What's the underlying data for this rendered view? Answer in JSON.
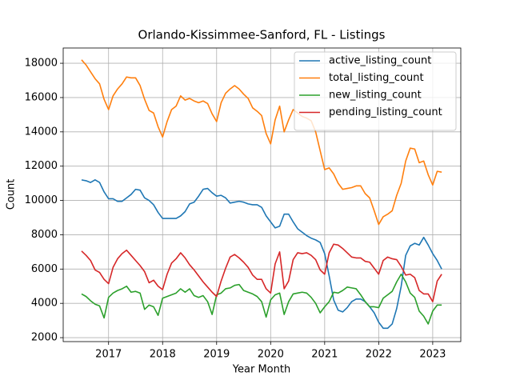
{
  "chart_data": {
    "type": "line",
    "title": "Orlando-Kissimmee-Sanford, FL - Listings",
    "x_label": "Year Month",
    "y_label": "Count",
    "x": [
      "2016-07",
      "2016-08",
      "2016-09",
      "2016-10",
      "2016-11",
      "2016-12",
      "2017-01",
      "2017-02",
      "2017-03",
      "2017-04",
      "2017-05",
      "2017-06",
      "2017-07",
      "2017-08",
      "2017-09",
      "2017-10",
      "2017-11",
      "2017-12",
      "2018-01",
      "2018-02",
      "2018-03",
      "2018-04",
      "2018-05",
      "2018-06",
      "2018-07",
      "2018-08",
      "2018-09",
      "2018-10",
      "2018-11",
      "2018-12",
      "2019-01",
      "2019-02",
      "2019-03",
      "2019-04",
      "2019-05",
      "2019-06",
      "2019-07",
      "2019-08",
      "2019-09",
      "2019-10",
      "2019-11",
      "2019-12",
      "2020-01",
      "2020-02",
      "2020-03",
      "2020-04",
      "2020-05",
      "2020-06",
      "2020-07",
      "2020-08",
      "2020-09",
      "2020-10",
      "2020-11",
      "2020-12",
      "2021-01",
      "2021-02",
      "2021-03",
      "2021-04",
      "2021-05",
      "2021-06",
      "2021-07",
      "2021-08",
      "2021-09",
      "2021-10",
      "2021-11",
      "2021-12",
      "2022-01",
      "2022-02",
      "2022-03",
      "2022-04",
      "2022-05",
      "2022-06",
      "2022-07",
      "2022-08",
      "2022-09",
      "2022-10",
      "2022-11",
      "2022-12",
      "2023-01",
      "2023-02",
      "2023-03"
    ],
    "series": [
      {
        "name": "active_listing_count",
        "color": "#1f77b4",
        "values": [
          11200,
          11150,
          11050,
          11200,
          11050,
          10500,
          10100,
          10100,
          9950,
          9950,
          10150,
          10350,
          10650,
          10600,
          10150,
          10000,
          9750,
          9300,
          8950,
          8950,
          8950,
          8950,
          9100,
          9350,
          9800,
          9900,
          10250,
          10650,
          10700,
          10450,
          10250,
          10300,
          10150,
          9850,
          9900,
          9950,
          9900,
          9800,
          9750,
          9750,
          9600,
          9100,
          8750,
          8400,
          8500,
          9200,
          9200,
          8750,
          8350,
          8150,
          7950,
          7800,
          7700,
          7550,
          6900,
          5600,
          4200,
          3600,
          3500,
          3750,
          4100,
          4250,
          4250,
          4100,
          3800,
          3450,
          2900,
          2550,
          2550,
          2800,
          3700,
          5000,
          6800,
          7350,
          7500,
          7400,
          7850,
          7400,
          6900,
          6500,
          6000
        ]
      },
      {
        "name": "total_listing_count",
        "color": "#ff7f0e",
        "values": [
          18200,
          17900,
          17500,
          17100,
          16800,
          15900,
          15300,
          16100,
          16500,
          16800,
          17200,
          17150,
          17150,
          16700,
          15900,
          15250,
          15100,
          14300,
          13700,
          14600,
          15300,
          15500,
          16100,
          15850,
          15950,
          15800,
          15700,
          15800,
          15650,
          15050,
          14600,
          15700,
          16250,
          16500,
          16700,
          16500,
          16200,
          15950,
          15400,
          15200,
          14950,
          13900,
          13300,
          14700,
          15500,
          14000,
          14700,
          15300,
          15100,
          14900,
          14800,
          14650,
          14000,
          12900,
          11800,
          11900,
          11550,
          11000,
          10650,
          10700,
          10750,
          10850,
          10850,
          10400,
          10150,
          9400,
          8600,
          9050,
          9200,
          9400,
          10300,
          11000,
          12300,
          13050,
          13000,
          12200,
          12300,
          11500,
          10900,
          11700,
          11650
        ]
      },
      {
        "name": "new_listing_count",
        "color": "#2ca02c",
        "values": [
          4550,
          4400,
          4150,
          3950,
          3850,
          3150,
          4350,
          4600,
          4750,
          4850,
          5000,
          4650,
          4700,
          4600,
          3650,
          3900,
          3800,
          3300,
          4300,
          4400,
          4500,
          4600,
          4850,
          4650,
          4850,
          4450,
          4350,
          4450,
          4100,
          3350,
          4500,
          4600,
          4850,
          4900,
          5050,
          5100,
          4750,
          4650,
          4550,
          4400,
          4100,
          3200,
          4200,
          4500,
          4600,
          3350,
          4100,
          4550,
          4600,
          4650,
          4600,
          4350,
          4000,
          3450,
          3800,
          4100,
          4650,
          4600,
          4750,
          4950,
          4900,
          4850,
          4500,
          4100,
          3800,
          3800,
          3750,
          4300,
          4500,
          4700,
          5250,
          5700,
          5250,
          4600,
          4350,
          3550,
          3250,
          2800,
          3550,
          3900,
          3900
        ]
      },
      {
        "name": "pending_listing_count",
        "color": "#d62728",
        "values": [
          7050,
          6800,
          6500,
          5950,
          5800,
          5400,
          5150,
          6100,
          6600,
          6900,
          7100,
          6800,
          6500,
          6200,
          5850,
          5200,
          5350,
          5000,
          4800,
          5700,
          6350,
          6600,
          6950,
          6650,
          6250,
          5950,
          5600,
          5250,
          4950,
          4650,
          4400,
          5300,
          6050,
          6700,
          6850,
          6650,
          6400,
          6100,
          5650,
          5400,
          5400,
          4850,
          4600,
          6300,
          7000,
          4850,
          5300,
          6550,
          6950,
          6900,
          6950,
          6800,
          6550,
          5950,
          5700,
          6950,
          7450,
          7400,
          7200,
          6950,
          6700,
          6650,
          6650,
          6450,
          6400,
          6050,
          5700,
          6500,
          6700,
          6600,
          6550,
          6150,
          5650,
          5700,
          5500,
          4750,
          4550,
          4550,
          4100,
          5300,
          5700
        ]
      }
    ],
    "xlim": [
      2016.16,
      2023.52
    ],
    "xticks": [
      2017,
      2018,
      2019,
      2020,
      2021,
      2022,
      2023
    ],
    "ylim": [
      1770,
      18890
    ],
    "yticks": [
      2000,
      4000,
      6000,
      8000,
      10000,
      12000,
      14000,
      16000,
      18000
    ],
    "grid": true,
    "legend": "upper right"
  }
}
